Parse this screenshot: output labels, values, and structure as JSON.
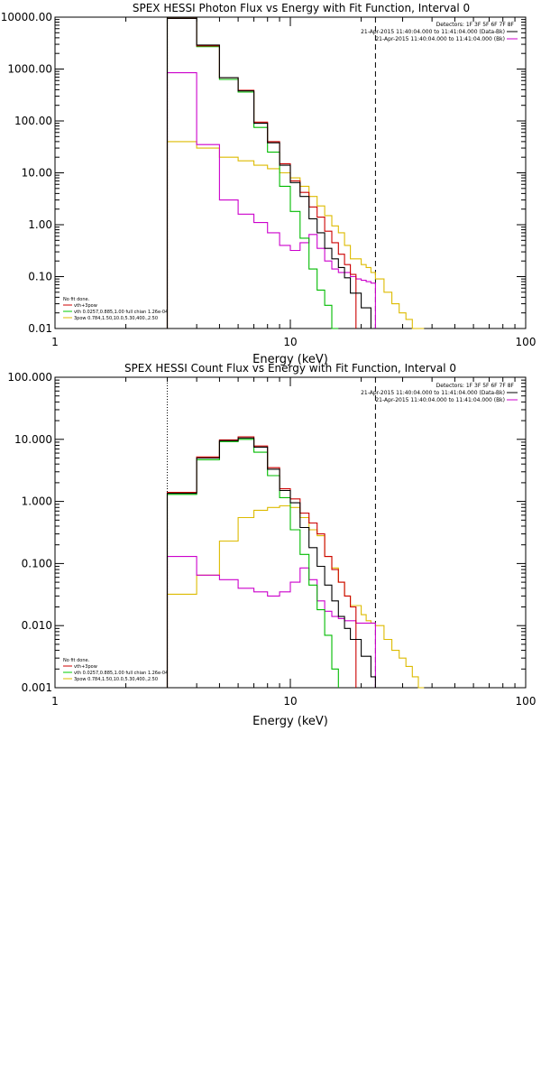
{
  "chart_data": [
    {
      "type": "line",
      "title": "SPEX HESSI Photon Flux vs Energy with Fit Function, Interval 0",
      "xlabel": "Energy (keV)",
      "ylabel": "",
      "xscale": "log",
      "yscale": "log",
      "xlim": [
        1,
        100
      ],
      "ylim": [
        0.01,
        10000
      ],
      "x_tick_labels": [
        "1",
        "10",
        "100"
      ],
      "y_tick_labels": [
        "10000.00",
        "1000.00",
        "100.00",
        "10.00",
        "1.00",
        "0.10",
        "0.01"
      ],
      "vlines": [
        {
          "x": 3,
          "style": "dotted"
        },
        {
          "x": 23,
          "style": "dashed"
        }
      ],
      "legend_top": {
        "placement": "top-right",
        "lines": [
          "Detectors: 1F 3F 5F 6F 7F 8F",
          "21-Apr-2015 11:40:04.000 to 11:41:04.000 (Data-Bk)",
          "21-Apr-2015 11:40:04.000 to 11:41:04.000 (Bk)"
        ],
        "colors": [
          "#000000",
          "#000000",
          "#cc00cc"
        ]
      },
      "legend_bottom": {
        "placement": "bottom-left",
        "lines": [
          "No fit done.",
          "vth+3pow",
          "vth 0.0257,0.885,1.00  full chian 1.26e-04",
          "3pow 0.784,1.50,10.0,5.30,400.,2.50"
        ],
        "colors": [
          "#000000",
          "#cc0000",
          "#00cc00",
          "#ddbb00"
        ]
      },
      "edges": [
        3,
        4,
        5,
        6,
        7,
        8,
        9,
        10,
        11,
        12,
        13,
        14,
        15,
        16,
        17,
        18,
        19,
        20,
        21,
        22,
        23,
        25,
        27,
        29,
        31,
        33,
        35,
        37
      ],
      "series": [
        {
          "key": "data",
          "color": "#000000",
          "values": [
            9500,
            2900,
            680,
            380,
            90,
            38,
            14,
            6.5,
            3.5,
            1.3,
            0.7,
            0.35,
            0.22,
            0.15,
            0.095,
            0.048,
            0.048,
            0.025,
            0.025,
            0.01
          ]
        },
        {
          "key": "total",
          "color": "#cc0000",
          "values": [
            9500,
            2800,
            680,
            390,
            95,
            40,
            15,
            7,
            4.2,
            2.2,
            1.4,
            0.75,
            0.45,
            0.27,
            0.17,
            0.11
          ]
        },
        {
          "key": "vth",
          "color": "#00bb00",
          "values": [
            9500,
            2700,
            630,
            360,
            75,
            25,
            5.5,
            1.8,
            0.55,
            0.14,
            0.055,
            0.028,
            0.009
          ]
        },
        {
          "key": "pow",
          "color": "#ddbb00",
          "values": [
            40,
            30,
            20,
            17,
            14,
            12,
            10,
            8,
            5.5,
            3.5,
            2.3,
            1.5,
            0.95,
            0.7,
            0.4,
            0.22,
            0.22,
            0.17,
            0.15,
            0.12,
            0.09,
            0.05,
            0.03,
            0.02,
            0.015,
            0.01,
            0.005
          ]
        },
        {
          "key": "bk",
          "color": "#cc00cc",
          "values": [
            850,
            35,
            3,
            1.6,
            1.1,
            0.7,
            0.4,
            0.32,
            0.45,
            0.65,
            0.35,
            0.2,
            0.14,
            0.12,
            0.12,
            0.1,
            0.09,
            0.085,
            0.08,
            0.075
          ]
        }
      ]
    },
    {
      "type": "line",
      "title": "SPEX HESSI Count Flux vs Energy with Fit Function, Interval 0",
      "xlabel": "Energy (keV)",
      "ylabel": "",
      "xscale": "log",
      "yscale": "log",
      "xlim": [
        1,
        100
      ],
      "ylim": [
        0.001,
        100
      ],
      "x_tick_labels": [
        "1",
        "10",
        "100"
      ],
      "y_tick_labels": [
        "100.000",
        "10.000",
        "1.000",
        "0.100",
        "0.010",
        "0.001"
      ],
      "vlines": [
        {
          "x": 3,
          "style": "dotted"
        },
        {
          "x": 23,
          "style": "dashed"
        }
      ],
      "legend_top": {
        "placement": "top-right",
        "lines": [
          "Detectors: 1F 3F 5F 6F 7F 8F",
          "21-Apr-2015 11:40:04.000 to 11:41:04.000 (Data-Bk)",
          "21-Apr-2015 11:40:04.000 to 11:41:04.000 (Bk)"
        ],
        "colors": [
          "#000000",
          "#000000",
          "#cc00cc"
        ]
      },
      "legend_bottom": {
        "placement": "bottom-left",
        "lines": [
          "No fit done.",
          "vth+3pow",
          "vth 0.0257,0.885,1.00  full chian 1.26e-04",
          "3pow 0.784,1.50,10.0,5.30,400.,2.50"
        ],
        "colors": [
          "#000000",
          "#cc0000",
          "#00cc00",
          "#ddbb00"
        ]
      },
      "edges": [
        3,
        4,
        5,
        6,
        7,
        8,
        9,
        10,
        11,
        12,
        13,
        14,
        15,
        16,
        17,
        18,
        19,
        20,
        21,
        22,
        23,
        25,
        27,
        29,
        31,
        33,
        35,
        37
      ],
      "series": [
        {
          "key": "data",
          "color": "#000000",
          "values": [
            1.35,
            5.0,
            9.5,
            10.5,
            7.5,
            3.3,
            1.5,
            0.95,
            0.38,
            0.18,
            0.09,
            0.045,
            0.025,
            0.014,
            0.009,
            0.006,
            0.006,
            0.0032,
            0.0032,
            0.0015
          ]
        },
        {
          "key": "total",
          "color": "#cc0000",
          "values": [
            1.4,
            5.2,
            9.8,
            11,
            7.8,
            3.5,
            1.6,
            1.1,
            0.65,
            0.45,
            0.3,
            0.13,
            0.08,
            0.05,
            0.03,
            0.02
          ]
        },
        {
          "key": "vth",
          "color": "#00bb00",
          "values": [
            1.3,
            4.7,
            9.2,
            10.0,
            6.2,
            2.6,
            1.15,
            0.35,
            0.14,
            0.045,
            0.018,
            0.007,
            0.002
          ]
        },
        {
          "key": "pow",
          "color": "#ddbb00",
          "values": [
            0.032,
            0.065,
            0.23,
            0.55,
            0.72,
            0.8,
            0.85,
            0.8,
            0.55,
            0.35,
            0.28,
            0.13,
            0.085,
            0.05,
            0.03,
            0.021,
            0.021,
            0.015,
            0.012,
            0.011,
            0.01,
            0.006,
            0.004,
            0.003,
            0.0022,
            0.0015,
            0.001
          ]
        },
        {
          "key": "bk",
          "color": "#cc00cc",
          "values": [
            0.13,
            0.065,
            0.055,
            0.04,
            0.035,
            0.03,
            0.035,
            0.05,
            0.085,
            0.055,
            0.025,
            0.017,
            0.014,
            0.013,
            0.012,
            0.012,
            0.011,
            0.011,
            0.011,
            0.011
          ]
        }
      ]
    }
  ]
}
